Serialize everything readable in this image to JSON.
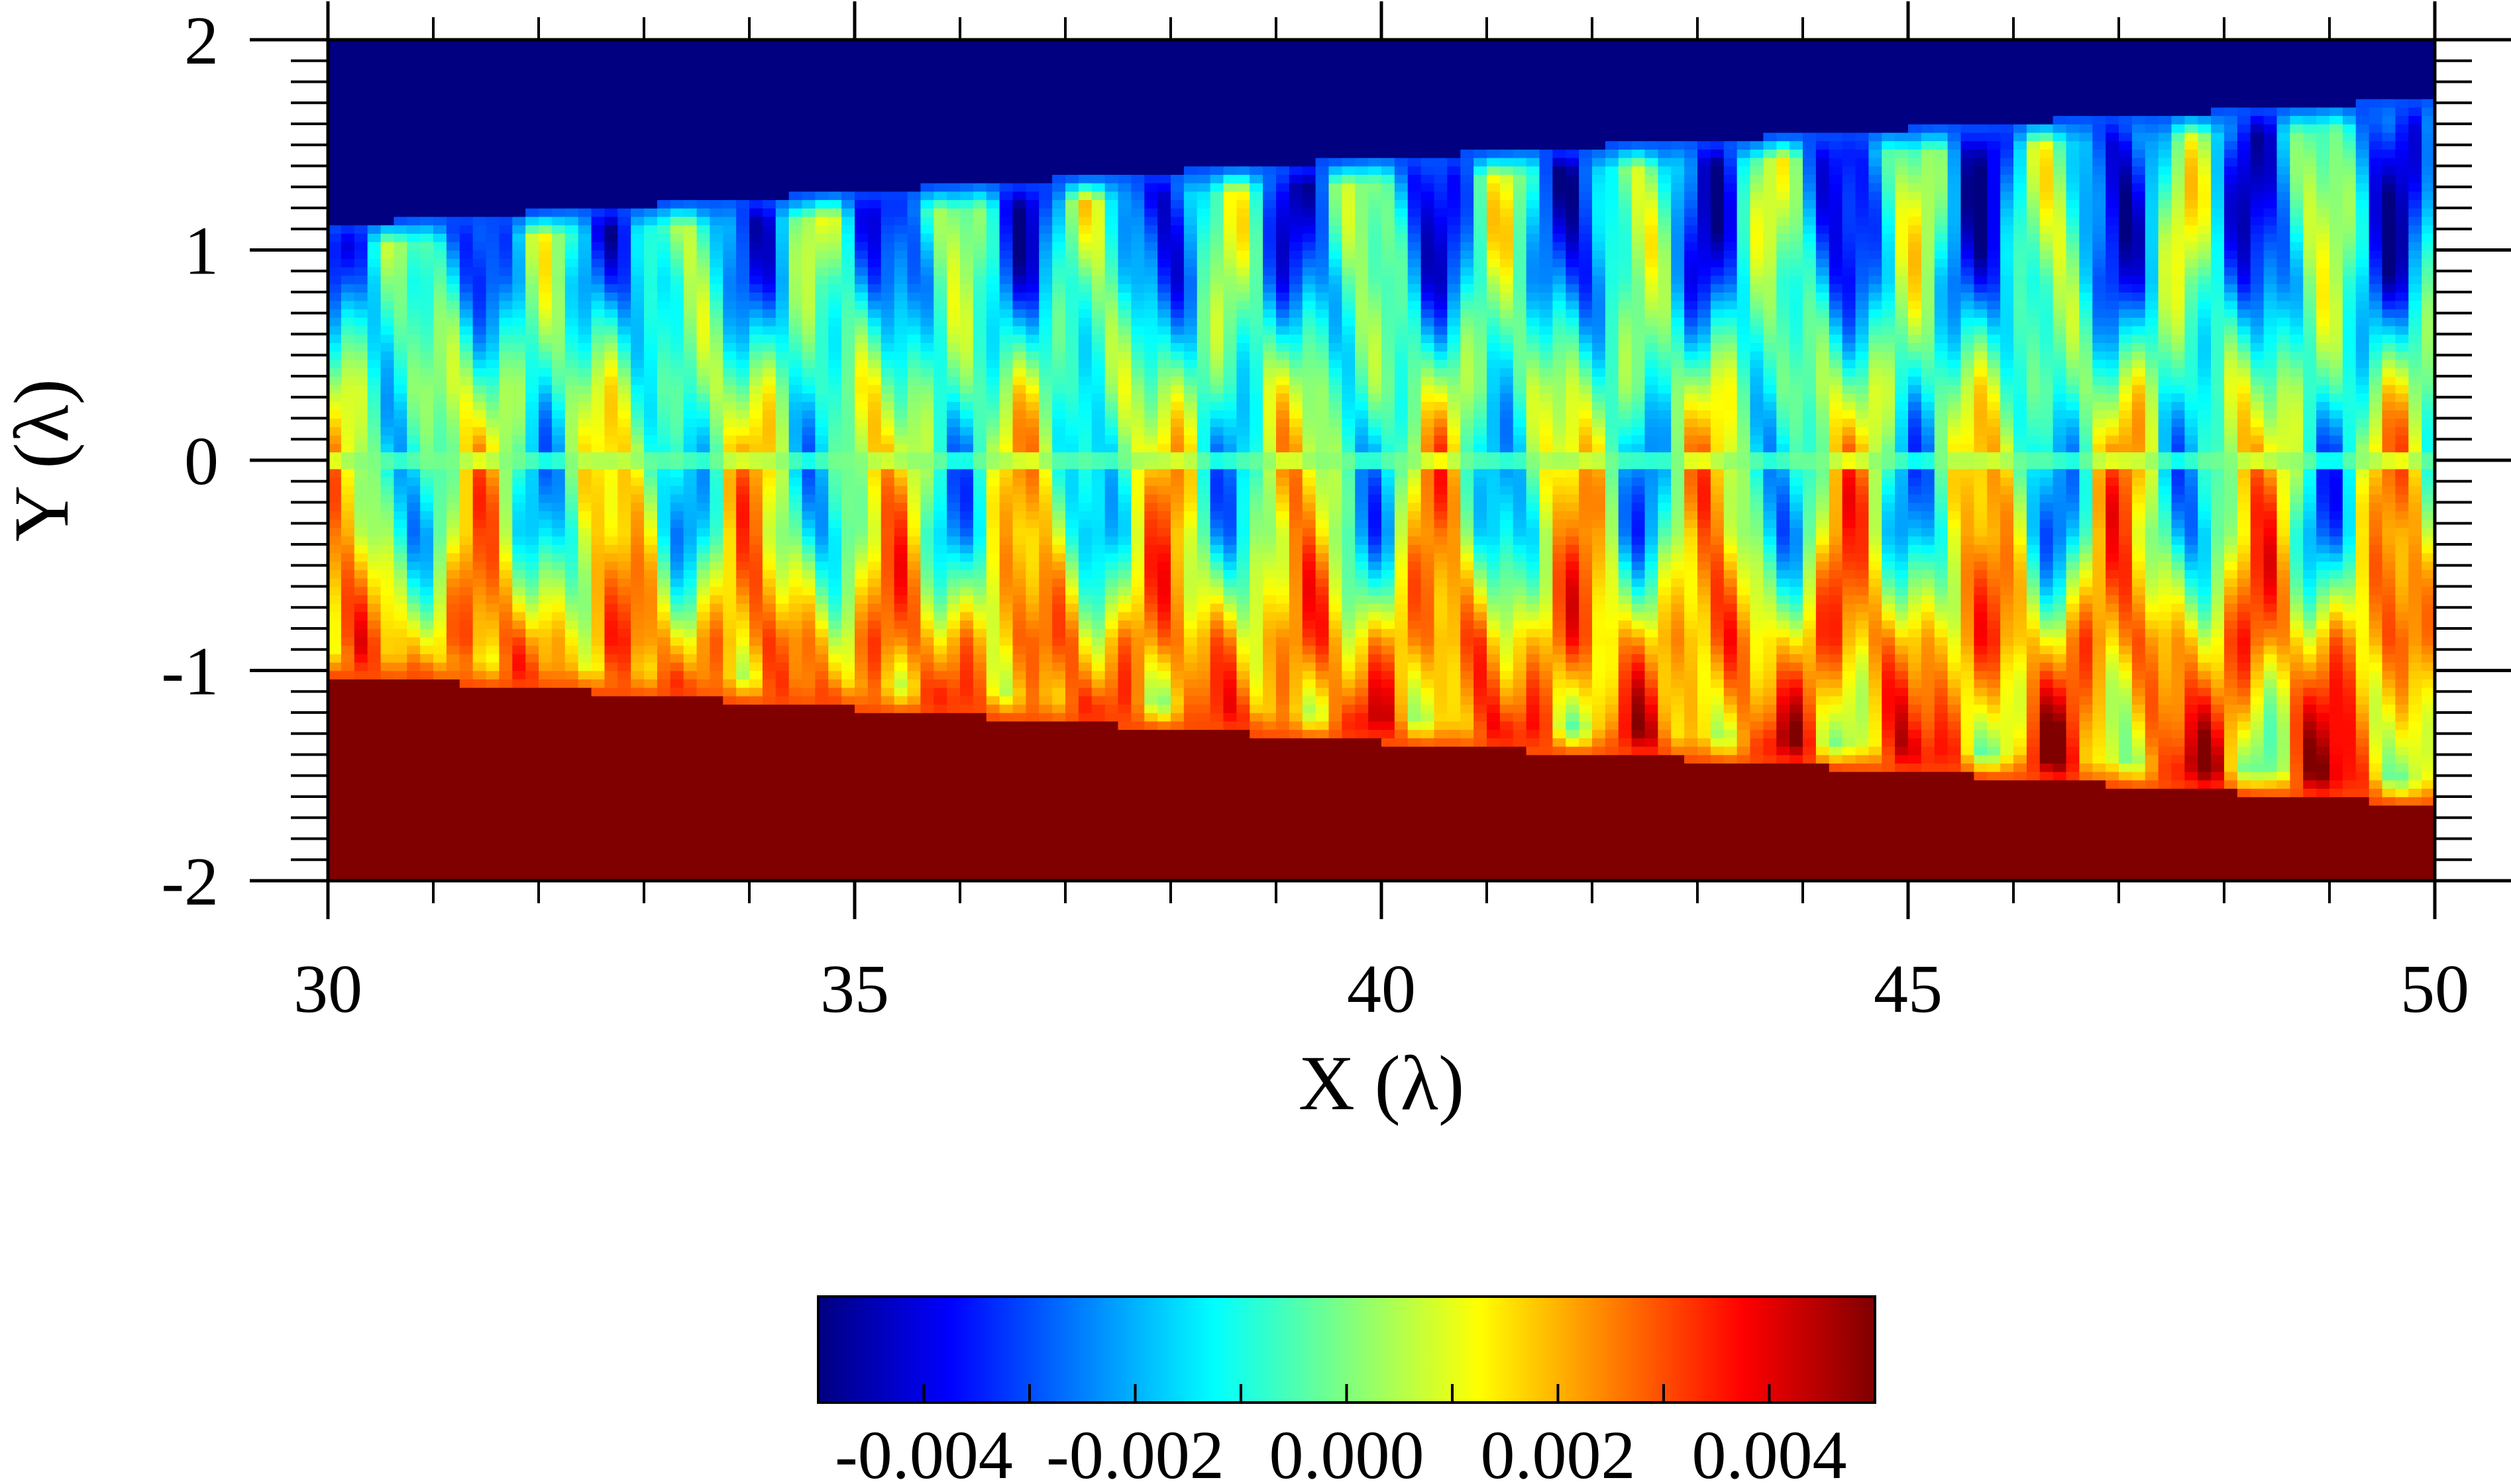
{
  "chart_data": {
    "type": "heatmap",
    "title": "",
    "xlabel": "X (λ)",
    "ylabel": "Y (λ)",
    "xlim": [
      30,
      50
    ],
    "ylim": [
      -2,
      2
    ],
    "x_ticks": [
      30,
      35,
      40,
      45,
      50
    ],
    "x_tick_labels": [
      "30",
      "35",
      "40",
      "45",
      "50"
    ],
    "y_ticks": [
      -2,
      -1,
      0,
      1,
      2
    ],
    "y_tick_labels": [
      "-2",
      "-1",
      "0",
      "1",
      "2"
    ],
    "grid": false,
    "colormap": "jet",
    "colorbar": {
      "range": [
        -0.005,
        0.005
      ],
      "ticks": [
        -0.004,
        -0.002,
        0.0,
        0.002,
        0.004
      ],
      "tick_labels": [
        "-0.004",
        "-0.002",
        "0.000",
        "0.002",
        "0.004"
      ],
      "placement": "bottom-center"
    },
    "field_description_values": {
      "upper_region_value": -0.005,
      "lower_region_value": 0.005,
      "upper_boundary_y_at_x": [
        [
          30,
          1.12
        ],
        [
          35,
          1.28
        ],
        [
          40,
          1.44
        ],
        [
          45,
          1.58
        ],
        [
          50,
          1.72
        ]
      ],
      "lower_boundary_y_at_x": [
        [
          30,
          -1.02
        ],
        [
          35,
          -1.18
        ],
        [
          40,
          -1.34
        ],
        [
          45,
          -1.48
        ],
        [
          50,
          -1.64
        ]
      ],
      "wave_period_x": 1.3,
      "amplitude": 0.005
    },
    "colors": {
      "dark_blue": "#00007f",
      "blue": "#0000ff",
      "cyan": "#00ffff",
      "yellow": "#ffff00",
      "red": "#ff0000",
      "dark_red": "#7f0000"
    }
  }
}
